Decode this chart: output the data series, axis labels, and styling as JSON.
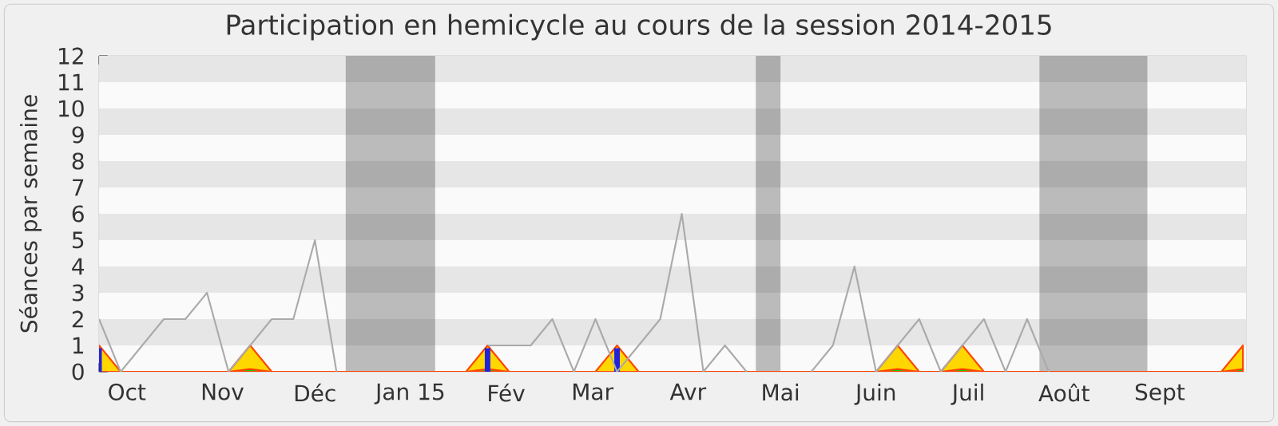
{
  "chart_data": {
    "type": "line",
    "title": "Participation en hemicycle au cours de la session 2014-2015",
    "ylabel": "Séances par semaine",
    "x": [
      "2014-09-22",
      "2014-09-29",
      "2014-10-06",
      "2014-10-13",
      "2014-10-20",
      "2014-10-27",
      "2014-11-03",
      "2014-11-10",
      "2014-11-17",
      "2014-11-24",
      "2014-12-01",
      "2014-12-08",
      "2014-12-15",
      "2014-12-22",
      "2014-12-29",
      "2015-01-05",
      "2015-01-12",
      "2015-01-19",
      "2015-01-26",
      "2015-02-02",
      "2015-02-09",
      "2015-02-16",
      "2015-02-23",
      "2015-03-02",
      "2015-03-09",
      "2015-03-16",
      "2015-03-23",
      "2015-03-30",
      "2015-04-06",
      "2015-04-13",
      "2015-04-20",
      "2015-04-27",
      "2015-05-04",
      "2015-05-11",
      "2015-05-18",
      "2015-05-25",
      "2015-06-01",
      "2015-06-08",
      "2015-06-15",
      "2015-06-22",
      "2015-06-29",
      "2015-07-06",
      "2015-07-13",
      "2015-07-20",
      "2015-07-27",
      "2015-08-03",
      "2015-08-10",
      "2015-08-17",
      "2015-08-24",
      "2015-08-31",
      "2015-09-07",
      "2015-09-14",
      "2015-09-21",
      "2015-09-28"
    ],
    "xlim": [
      "2014-09-22",
      "2015-09-29"
    ],
    "xticks": [
      {
        "value": "2014-10-01",
        "label": "Oct"
      },
      {
        "value": "2014-11-01",
        "label": "Nov"
      },
      {
        "value": "2014-12-01",
        "label": "Déc"
      },
      {
        "value": "2015-01-01",
        "label": "Jan 15"
      },
      {
        "value": "2015-02-01",
        "label": "Fév"
      },
      {
        "value": "2015-03-01",
        "label": "Mar"
      },
      {
        "value": "2015-04-01",
        "label": "Avr"
      },
      {
        "value": "2015-05-01",
        "label": "Mai"
      },
      {
        "value": "2015-06-01",
        "label": "Juin"
      },
      {
        "value": "2015-07-01",
        "label": "Juil"
      },
      {
        "value": "2015-08-01",
        "label": "Août"
      },
      {
        "value": "2015-09-01",
        "label": "Sept"
      },
      {
        "value": "2014-09-22",
        "label": null
      },
      {
        "value": "2014-09-29",
        "label": null
      },
      {
        "value": "2014-10-06",
        "label": null
      },
      {
        "value": "2014-10-13",
        "label": null
      },
      {
        "value": "2014-10-20",
        "label": null
      },
      {
        "value": "2014-10-27",
        "label": null
      },
      {
        "value": "2014-11-03",
        "label": null
      },
      {
        "value": "2014-11-10",
        "label": null
      },
      {
        "value": "2014-11-17",
        "label": null
      },
      {
        "value": "2014-11-24",
        "label": null
      },
      {
        "value": "2014-12-01",
        "label": null
      },
      {
        "value": "2014-12-08",
        "label": null
      },
      {
        "value": "2014-12-15",
        "label": null
      },
      {
        "value": "2014-12-22",
        "label": null
      },
      {
        "value": "2014-12-29",
        "label": null
      },
      {
        "value": "2015-01-05",
        "label": null
      },
      {
        "value": "2015-01-12",
        "label": null
      },
      {
        "value": "2015-01-19",
        "label": null
      },
      {
        "value": "2015-01-26",
        "label": null
      },
      {
        "value": "2015-02-02",
        "label": null
      },
      {
        "value": "2015-02-09",
        "label": null
      },
      {
        "value": "2015-02-16",
        "label": null
      },
      {
        "value": "2015-02-23",
        "label": null
      },
      {
        "value": "2015-03-02",
        "label": null
      },
      {
        "value": "2015-03-09",
        "label": null
      },
      {
        "value": "2015-03-16",
        "label": null
      },
      {
        "value": "2015-03-23",
        "label": null
      },
      {
        "value": "2015-03-30",
        "label": null
      },
      {
        "value": "2015-04-06",
        "label": null
      },
      {
        "value": "2015-04-13",
        "label": null
      },
      {
        "value": "2015-04-20",
        "label": null
      },
      {
        "value": "2015-04-27",
        "label": null
      },
      {
        "value": "2015-05-04",
        "label": null
      },
      {
        "value": "2015-05-11",
        "label": null
      },
      {
        "value": "2015-05-18",
        "label": null
      },
      {
        "value": "2015-05-25",
        "label": null
      },
      {
        "value": "2015-06-01",
        "label": null
      },
      {
        "value": "2015-06-08",
        "label": null
      },
      {
        "value": "2015-06-15",
        "label": null
      },
      {
        "value": "2015-06-22",
        "label": null
      },
      {
        "value": "2015-06-29",
        "label": null
      },
      {
        "value": "2015-07-06",
        "label": null
      },
      {
        "value": "2015-07-13",
        "label": null
      },
      {
        "value": "2015-07-20",
        "label": null
      },
      {
        "value": "2015-07-27",
        "label": null
      },
      {
        "value": "2015-08-03",
        "label": null
      },
      {
        "value": "2015-08-10",
        "label": null
      },
      {
        "value": "2015-08-17",
        "label": null
      },
      {
        "value": "2015-08-24",
        "label": null
      },
      {
        "value": "2015-08-31",
        "label": null
      },
      {
        "value": "2015-09-07",
        "label": null
      },
      {
        "value": "2015-09-14",
        "label": null
      },
      {
        "value": "2015-09-21",
        "label": null
      },
      {
        "value": "2015-09-28",
        "label": null
      }
    ],
    "bands": [
      {
        "axis": "x",
        "from": "2014-12-11",
        "to": "2015-01-09"
      },
      {
        "axis": "x",
        "from": "2015-04-23",
        "to": "2015-05-01"
      },
      {
        "axis": "x",
        "from": "2015-07-24",
        "to": "2015-08-28"
      }
    ],
    "ylim": [
      0,
      12
    ],
    "yticks": [
      0,
      1,
      2,
      3,
      4,
      5,
      6,
      7,
      8,
      9,
      10,
      11,
      12
    ],
    "line_style": "solid",
    "marker": "none",
    "series": [
      {
        "color": "#aaaaaa",
        "values": [
          2,
          0,
          1,
          2,
          2,
          3,
          0,
          1,
          2,
          2,
          5,
          0,
          null,
          null,
          null,
          null,
          null,
          null,
          1,
          1,
          1,
          2,
          0,
          2,
          0,
          1,
          2,
          6,
          0,
          1,
          0,
          null,
          null,
          0,
          1,
          4,
          0,
          1,
          2,
          0,
          1,
          2,
          0,
          2,
          0,
          null,
          null,
          null,
          null,
          null,
          null,
          null,
          null,
          null
        ]
      },
      {
        "type": "area",
        "color": "#ffd700",
        "values": [
          1,
          0,
          0,
          0,
          0,
          0,
          0,
          1,
          0,
          0,
          0,
          0,
          0,
          0,
          0,
          0,
          0,
          0,
          1,
          0,
          0,
          0,
          0,
          0,
          1,
          0,
          0,
          0,
          0,
          0,
          0,
          0,
          0,
          0,
          0,
          0,
          0,
          1,
          0,
          0,
          1,
          0,
          0,
          0,
          0,
          0,
          0,
          0,
          0,
          0,
          0,
          0,
          0,
          1
        ]
      },
      {
        "type": "area",
        "color": "#00dd00",
        "values": [
          0,
          0,
          0,
          0,
          0,
          0,
          0,
          0.1,
          0,
          0,
          0,
          0,
          0,
          0,
          0,
          0,
          0,
          0,
          0.1,
          0,
          0,
          0,
          0,
          0,
          0,
          0,
          0,
          0,
          0,
          0,
          0,
          0,
          0,
          0,
          0,
          0,
          0,
          0.1,
          0,
          0,
          0.1,
          0,
          0,
          0,
          0,
          0,
          0,
          0,
          0,
          0,
          0,
          0,
          0,
          0.1
        ]
      },
      {
        "type": "bar",
        "color": "#2222dd",
        "values": [
          0.9,
          null,
          null,
          null,
          null,
          null,
          null,
          null,
          null,
          null,
          null,
          null,
          null,
          null,
          null,
          null,
          null,
          null,
          0.9,
          null,
          null,
          null,
          null,
          null,
          0.9,
          null,
          null,
          null,
          null,
          null,
          null,
          null,
          null,
          null,
          null,
          null,
          null,
          null,
          null,
          null,
          null,
          null,
          null,
          null,
          null,
          null,
          null,
          null,
          null,
          null,
          null,
          null,
          null,
          null
        ]
      }
    ]
  }
}
